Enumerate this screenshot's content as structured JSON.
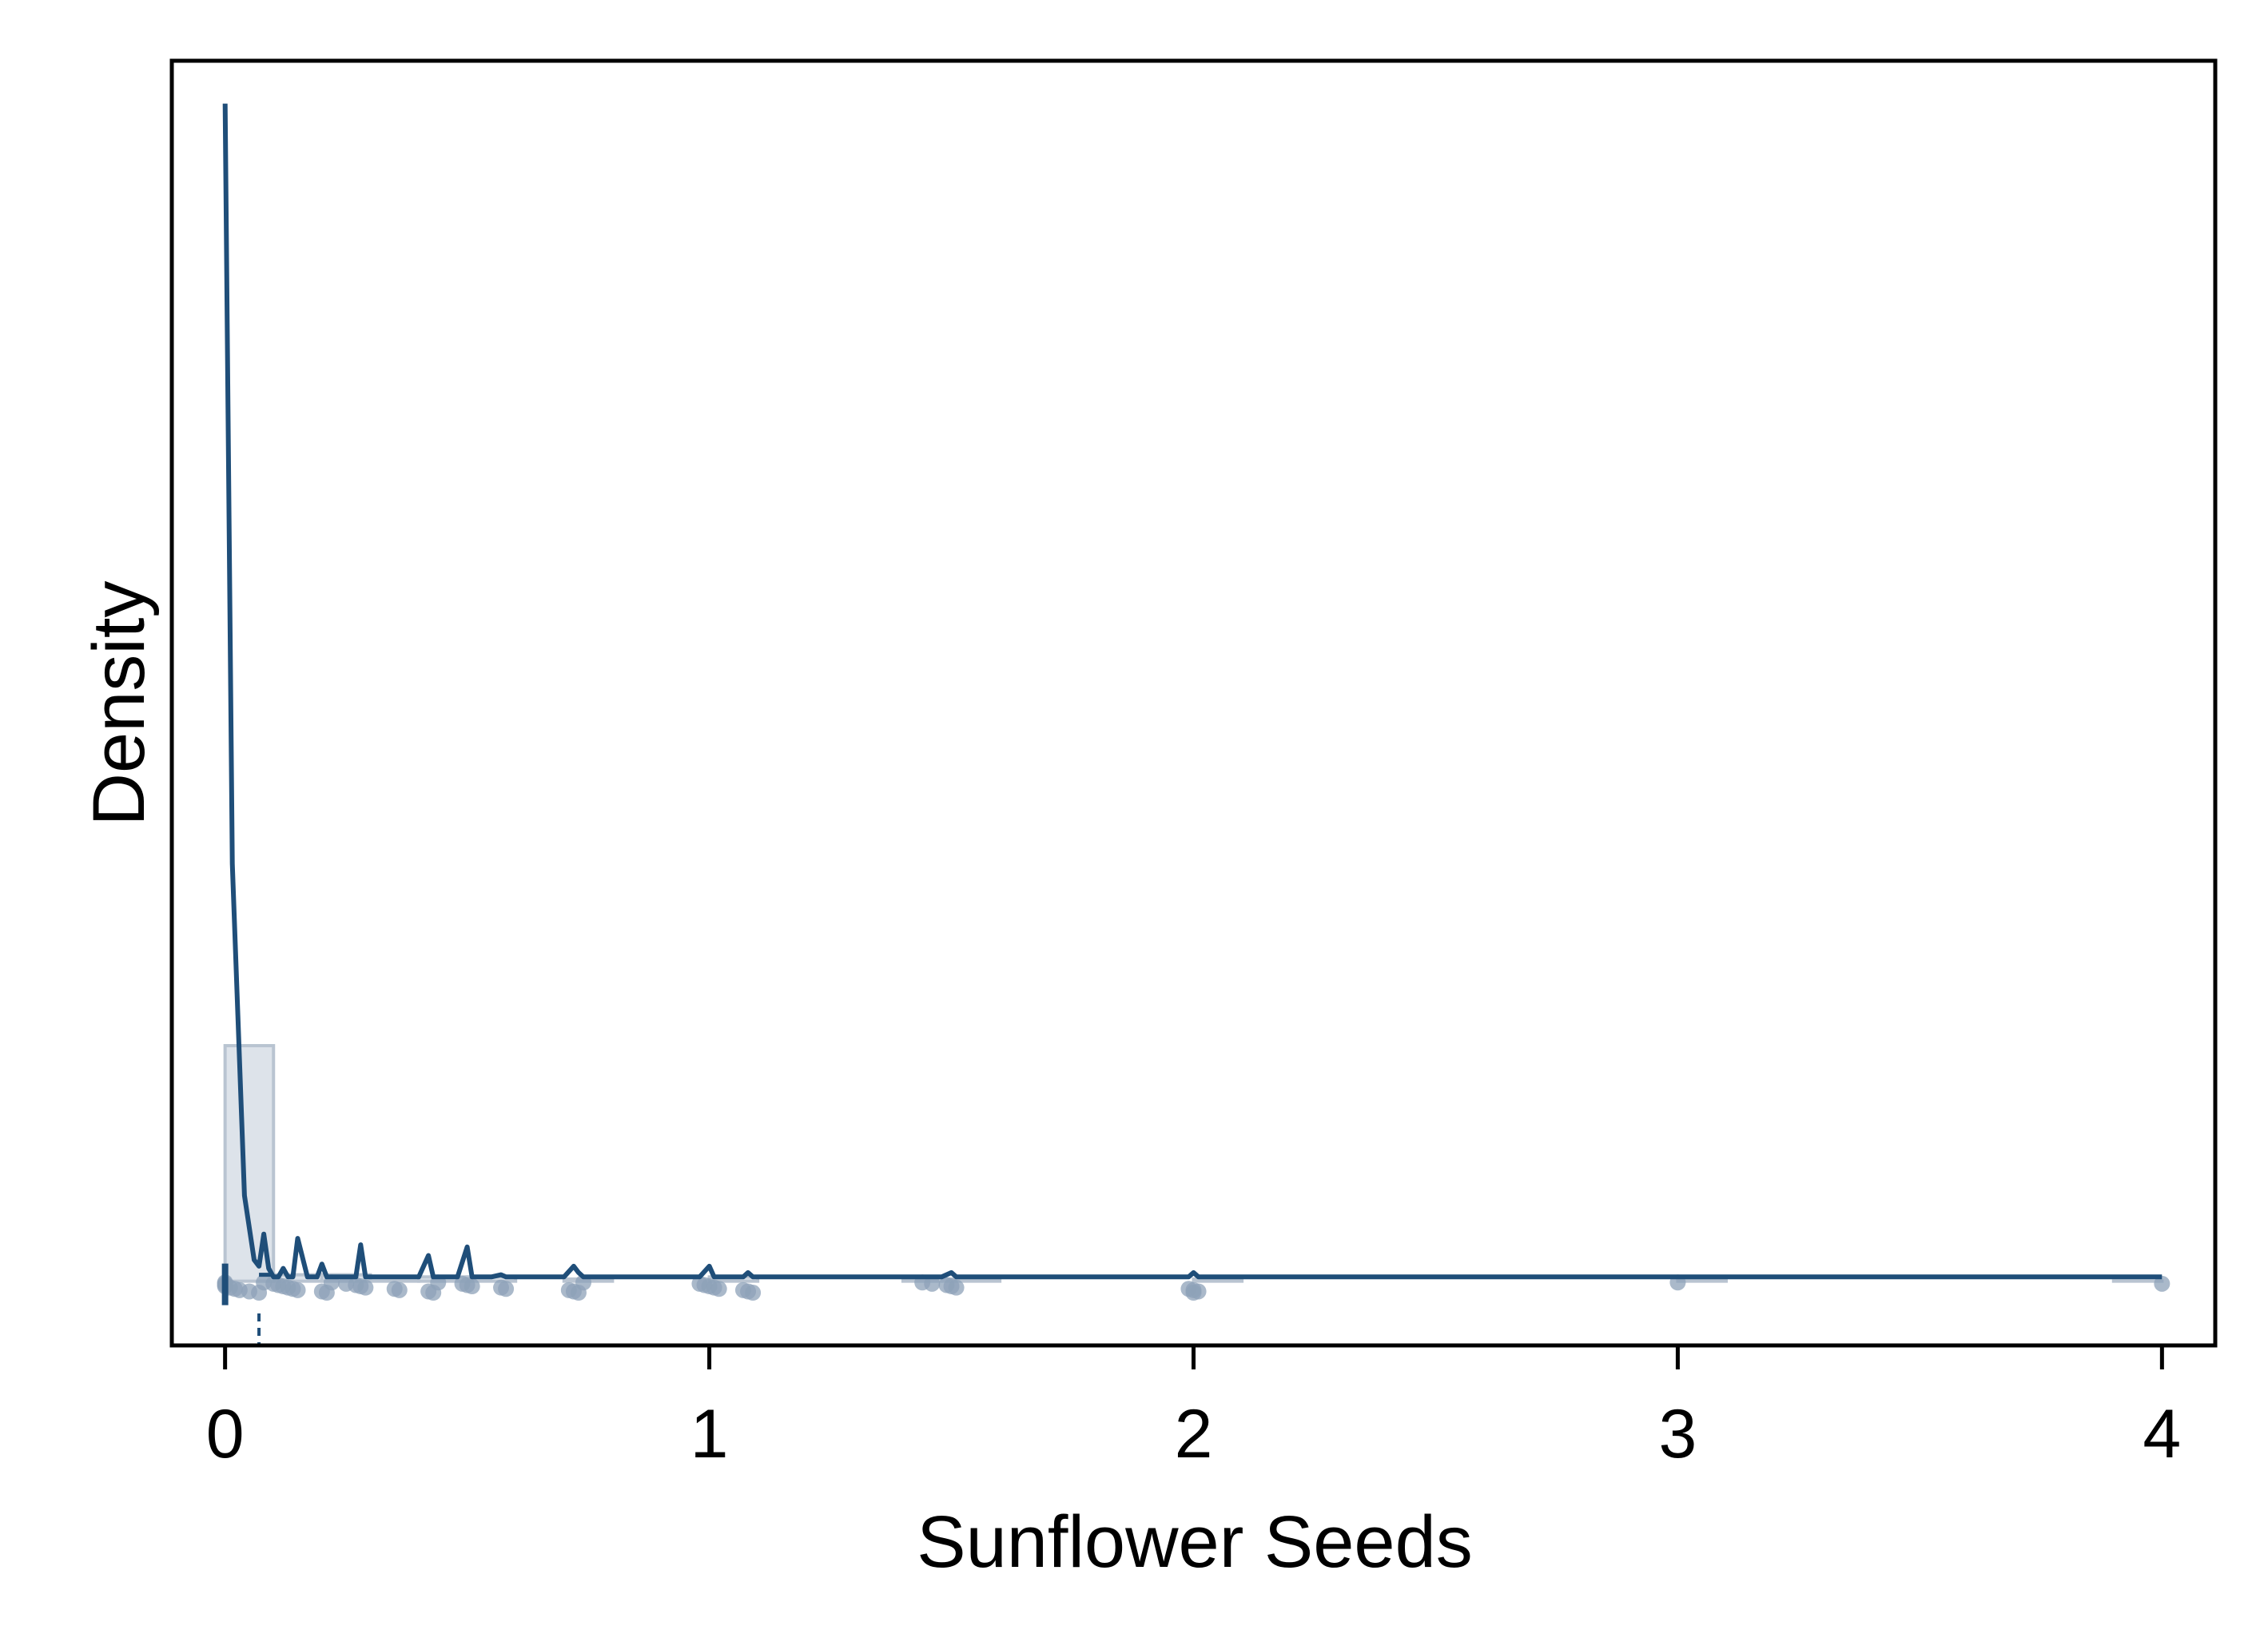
{
  "chart_data": {
    "type": "area",
    "title": "",
    "xlabel": "Sunflower Seeds",
    "ylabel": "Density",
    "xlim": [
      -0.11,
      4.11
    ],
    "ylim": [
      -0.3,
      5.7
    ],
    "xticks": [
      0,
      1,
      2,
      3,
      4
    ],
    "xtick_labels": [
      "0",
      "1",
      "2",
      "3",
      "4"
    ],
    "yticks_shown": false,
    "grid": false,
    "legend": "none",
    "colors": {
      "line": "#1f4e79",
      "histogram_fill": "#dde3ea",
      "histogram_edge": "#b9c4d1",
      "points": "#8da2b8"
    },
    "histogram": {
      "bin_start": 0,
      "bin_width": 0.1,
      "densities": [
        1.1,
        0.03,
        0.03,
        0.02,
        0.02,
        0.02,
        0.0,
        0.01,
        0.0,
        0.0,
        0.02,
        0.0,
        0.0,
        0.0,
        0.01,
        0.01,
        0.0,
        0.0,
        0.0,
        0.0,
        0.01,
        0.0,
        0.0,
        0.0,
        0.0,
        0.0,
        0.0,
        0.0,
        0.0,
        0.0,
        0.003,
        0.0,
        0.0,
        0.0,
        0.0,
        0.0,
        0.0,
        0.0,
        0.0,
        0.001
      ]
    },
    "density_curve": {
      "x": [
        0.0,
        0.015,
        0.04,
        0.06,
        0.07,
        0.08,
        0.09,
        0.1,
        0.11,
        0.12,
        0.13,
        0.14,
        0.15,
        0.17,
        0.19,
        0.2,
        0.21,
        0.22,
        0.25,
        0.27,
        0.28,
        0.29,
        0.3,
        0.4,
        0.42,
        0.43,
        0.44,
        0.48,
        0.5,
        0.51,
        0.55,
        0.57,
        0.58,
        0.7,
        0.72,
        0.73,
        0.74,
        0.98,
        1.0,
        1.01,
        1.07,
        1.08,
        1.09,
        1.48,
        1.5,
        1.51,
        1.99,
        2.0,
        2.01,
        4.0
      ],
      "y": [
        5.5,
        1.95,
        0.4,
        0.1,
        0.07,
        0.22,
        0.06,
        0.02,
        0.02,
        0.06,
        0.02,
        0.02,
        0.2,
        0.02,
        0.02,
        0.08,
        0.02,
        0.02,
        0.02,
        0.02,
        0.17,
        0.02,
        0.02,
        0.02,
        0.12,
        0.02,
        0.02,
        0.02,
        0.16,
        0.02,
        0.02,
        0.03,
        0.02,
        0.02,
        0.07,
        0.04,
        0.02,
        0.02,
        0.07,
        0.02,
        0.02,
        0.04,
        0.02,
        0.02,
        0.04,
        0.02,
        0.02,
        0.04,
        0.02,
        0.02
      ]
    },
    "summary": {
      "median": 0.0,
      "q1": 0.0,
      "q3": 0.07,
      "whisker_high": 0.1,
      "mean": 0.07
    },
    "observations": [
      0,
      0,
      0,
      0,
      0.01,
      0.02,
      0.03,
      0.05,
      0.07,
      0.08,
      0.1,
      0.11,
      0.12,
      0.13,
      0.14,
      0.15,
      0.2,
      0.21,
      0.22,
      0.25,
      0.27,
      0.28,
      0.29,
      0.35,
      0.36,
      0.42,
      0.43,
      0.44,
      0.49,
      0.5,
      0.51,
      0.57,
      0.58,
      0.71,
      0.72,
      0.73,
      0.74,
      0.98,
      0.99,
      1.0,
      1.01,
      1.02,
      1.07,
      1.08,
      1.09,
      1.44,
      1.46,
      1.49,
      1.5,
      1.51,
      1.99,
      2.0,
      2.01,
      2.0,
      3.0,
      4.0
    ]
  }
}
